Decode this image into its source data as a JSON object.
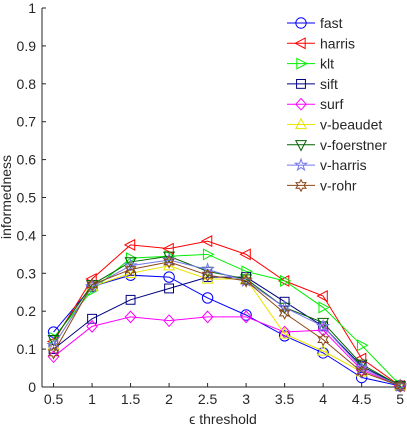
{
  "chart_data": {
    "type": "line",
    "title": "",
    "xlabel": "ϵ threshold",
    "ylabel": "informedness",
    "xlim": [
      0.35,
      5.05
    ],
    "ylim": [
      0,
      1
    ],
    "x": [
      0.5,
      1,
      1.5,
      2,
      2.5,
      3,
      3.5,
      4,
      4.5,
      5
    ],
    "x_tick_labels": [
      "0.5",
      "1",
      "1.5",
      "2",
      "2.5",
      "3",
      "3.5",
      "4",
      "4.5",
      "5"
    ],
    "y_ticks": [
      0,
      0.1,
      0.2,
      0.3,
      0.4,
      0.5,
      0.6,
      0.7,
      0.8,
      0.9,
      1
    ],
    "y_tick_labels": [
      "0",
      "0.1",
      "0.2",
      "0.3",
      "0.4",
      "0.5",
      "0.6",
      "0.7",
      "0.8",
      "0.9",
      "1"
    ],
    "grid": false,
    "legend_position": "top-right",
    "series": [
      {
        "name": "fast",
        "color": "#0000ff",
        "marker": "circle",
        "values": [
          0.145,
          0.265,
          0.295,
          0.29,
          0.235,
          0.19,
          0.135,
          0.09,
          0.025,
          0.003
        ]
      },
      {
        "name": "harris",
        "color": "#ff0000",
        "marker": "triangle-left",
        "values": [
          0.12,
          0.285,
          0.375,
          0.365,
          0.385,
          0.35,
          0.28,
          0.24,
          0.075,
          0.003
        ]
      },
      {
        "name": "klt",
        "color": "#00ee00",
        "marker": "triangle-right",
        "values": [
          0.13,
          0.255,
          0.34,
          0.345,
          0.35,
          0.305,
          0.28,
          0.21,
          0.11,
          0.005
        ]
      },
      {
        "name": "sift",
        "color": "#000080",
        "marker": "square",
        "values": [
          0.1,
          0.18,
          0.23,
          0.26,
          0.29,
          0.29,
          0.225,
          0.16,
          0.055,
          0.003
        ]
      },
      {
        "name": "surf",
        "color": "#ff00ff",
        "marker": "diamond",
        "values": [
          0.08,
          0.16,
          0.185,
          0.175,
          0.185,
          0.185,
          0.145,
          0.15,
          0.045,
          0.003
        ]
      },
      {
        "name": "v-beaudet",
        "color": "#e6e600",
        "marker": "triangle-up",
        "values": [
          0.11,
          0.265,
          0.3,
          0.32,
          0.285,
          0.285,
          0.14,
          0.095,
          0.04,
          0.003
        ]
      },
      {
        "name": "v-foerstner",
        "color": "#006400",
        "marker": "triangle-down",
        "values": [
          0.125,
          0.27,
          0.33,
          0.345,
          0.305,
          0.285,
          0.21,
          0.17,
          0.06,
          0.003
        ]
      },
      {
        "name": "v-harris",
        "color": "#7777ee",
        "marker": "star",
        "values": [
          0.11,
          0.265,
          0.32,
          0.335,
          0.31,
          0.28,
          0.21,
          0.16,
          0.05,
          0.003
        ]
      },
      {
        "name": "v-rohr",
        "color": "#8b4513",
        "marker": "hexagram",
        "values": [
          0.09,
          0.27,
          0.31,
          0.33,
          0.295,
          0.28,
          0.195,
          0.125,
          0.04,
          0.003
        ]
      }
    ]
  }
}
